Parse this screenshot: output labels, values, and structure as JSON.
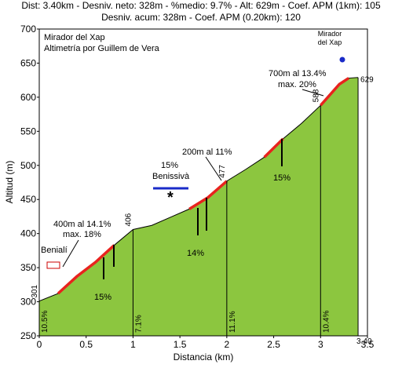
{
  "chart_data": {
    "type": "area",
    "title": "Dist: 3.40km - Desniv. neto: 328m - %medio: 9.7% - Alt: 629m - Coef. APM (1km): 105",
    "subtitle": "Desniv. acum: 328m - Coef. APM (0.20km): 120",
    "heading": [
      "Mirador del Xap",
      "Altimetría por Guillem de Vera"
    ],
    "xlabel": "Distancia (km)",
    "ylabel": "Altitud (m)",
    "x": [
      0,
      0.2,
      0.4,
      0.6,
      0.8,
      1.0,
      1.2,
      1.4,
      1.6,
      1.8,
      2.0,
      2.2,
      2.4,
      2.6,
      2.8,
      3.0,
      3.2,
      3.3,
      3.4
    ],
    "series": [
      {
        "name": "Altitud",
        "color": "#000000",
        "fill": "#8cc63f",
        "values": [
          301,
          312,
          337,
          358,
          383,
          406,
          412,
          424,
          436,
          453,
          477,
          494,
          512,
          539,
          562,
          588,
          619,
          628,
          629
        ]
      },
      {
        "name": "Rampas",
        "color": "#e8231e",
        "values": [
          null,
          312,
          337,
          358,
          383,
          null,
          null,
          null,
          436,
          453,
          477,
          null,
          512,
          539,
          null,
          588,
          619,
          628,
          null
        ]
      }
    ],
    "km_marks": {
      "x": [
        0,
        1,
        2,
        3
      ],
      "alt": [
        301,
        406,
        477,
        588
      ],
      "grade": [
        "10.5%",
        "7.1%",
        "11.1%",
        "10.4%"
      ]
    },
    "end_mark": {
      "x": {
        "value": 3.4,
        "label": "3.40"
      },
      "alt": 629
    },
    "annotations": [
      "400m al 14.1%",
      "max. 18%",
      "15%",
      "14%",
      "15%",
      "15%",
      "Benissivà",
      "200m al 11%",
      "700m al 13.4%",
      "max. 20%",
      "Mirador",
      "del Xap",
      "Benialí"
    ],
    "xlim": [
      0,
      3.5
    ],
    "xticks": [
      0,
      0.5,
      1,
      1.5,
      2,
      2.5,
      3,
      3.5
    ],
    "ylim": [
      250,
      700
    ],
    "yticks": [
      250,
      300,
      350,
      400,
      450,
      500,
      550,
      600,
      650,
      700
    ]
  }
}
